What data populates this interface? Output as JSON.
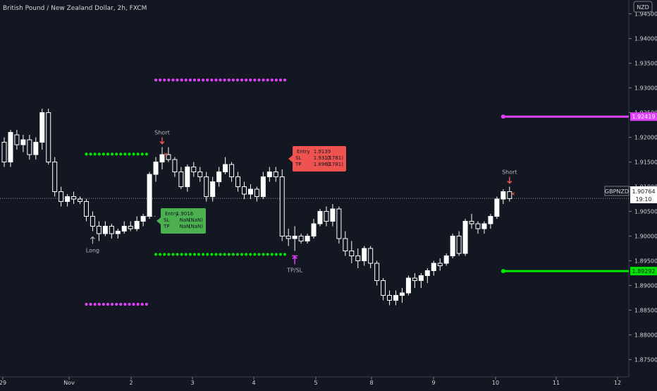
{
  "header": {
    "title": "British Pound / New Zealand Dollar, 2h, FXCM"
  },
  "currency_badge": "NZD",
  "symbol_label": "GBPNZD",
  "countdown": "19:10",
  "colors": {
    "background": "#131722",
    "candle": "#ffffff",
    "axis_text": "#d1d4dc",
    "magenta": "#e040fb",
    "green": "#00e600",
    "short_box": "#ef5350",
    "long_box": "#4caf50",
    "short_arrow": "#ef5350",
    "tp_sl_marker": "#e040fb"
  },
  "chart_data": {
    "type": "candlestick",
    "title": "British Pound / New Zealand Dollar, 2h, FXCM",
    "y_axis": {
      "ticks": [
        "1.94500",
        "1.94000",
        "1.93500",
        "1.93000",
        "1.92500",
        "1.92000",
        "1.91500",
        "1.91000",
        "1.90500",
        "1.90000",
        "1.89500",
        "1.89000",
        "1.88500",
        "1.88000",
        "1.87500"
      ],
      "ylim": [
        1.8715,
        1.9478
      ]
    },
    "x_axis": {
      "ticks": [
        "29",
        "Nov",
        "2",
        "3",
        "4",
        "5",
        "8",
        "9",
        "10",
        "11",
        "12"
      ]
    },
    "last_price": {
      "value": 1.90764,
      "label": "1.90764"
    },
    "level_labels": [
      {
        "value": 1.92419,
        "label": "1.92419",
        "color": "magenta"
      },
      {
        "value": 1.89292,
        "label": "1.89292",
        "color": "green"
      }
    ],
    "dotted_levels": [
      {
        "price": 1.9316,
        "color": "magenta",
        "from_bar": 24,
        "to_bar": 45
      },
      {
        "price": 1.8862,
        "color": "magenta",
        "from_bar": 13,
        "to_bar": 23
      },
      {
        "price": 1.9166,
        "color": "green",
        "from_bar": 13,
        "to_bar": 23
      },
      {
        "price": 1.8963,
        "color": "green",
        "from_bar": 24,
        "to_bar": 45
      }
    ],
    "solid_levels": [
      {
        "price": 1.92419,
        "color": "magenta",
        "from_bar": 79
      },
      {
        "price": 1.89292,
        "color": "green",
        "from_bar": 79
      }
    ],
    "signals": [
      {
        "type": "long",
        "text": "Long",
        "bar": 14
      },
      {
        "type": "short",
        "text": "Short",
        "bar": 25
      },
      {
        "type": "tp_sl",
        "text": "TP/SL",
        "bar": 46
      },
      {
        "type": "short",
        "text": "Short",
        "bar": 80
      }
    ],
    "info_boxes": [
      {
        "kind": "long",
        "rows": [
          {
            "label": "Entry",
            "value": "1.9016",
            "extra": ""
          },
          {
            "label": "SL",
            "value": "NaN",
            "extra": "(NaN)"
          },
          {
            "label": "TP",
            "value": "NaN",
            "extra": "(NaN)"
          }
        ]
      },
      {
        "kind": "short",
        "rows": [
          {
            "label": "Entry",
            "value": "1.9139",
            "extra": ""
          },
          {
            "label": "SL",
            "value": "1.9317",
            "extra": "(1781)"
          },
          {
            "label": "TP",
            "value": "1.8961",
            "extra": "(1781)"
          }
        ]
      }
    ],
    "candles": [
      [
        1.919,
        1.92,
        1.914,
        1.915
      ],
      [
        1.915,
        1.9215,
        1.914,
        1.921
      ],
      [
        1.9205,
        1.9215,
        1.9175,
        1.9185
      ],
      [
        1.9185,
        1.9205,
        1.917,
        1.9195
      ],
      [
        1.9195,
        1.9205,
        1.9155,
        1.9165
      ],
      [
        1.9165,
        1.92,
        1.9155,
        1.919
      ],
      [
        1.919,
        1.9258,
        1.9175,
        1.925
      ],
      [
        1.925,
        1.9258,
        1.9145,
        1.915
      ],
      [
        1.915,
        1.916,
        1.908,
        1.909
      ],
      [
        1.909,
        1.91,
        1.906,
        1.907
      ],
      [
        1.907,
        1.9085,
        1.906,
        1.908
      ],
      [
        1.908,
        1.909,
        1.9065,
        1.9075
      ],
      [
        1.9075,
        1.908,
        1.9065,
        1.907
      ],
      [
        1.907,
        1.9075,
        1.903,
        1.904
      ],
      [
        1.904,
        1.905,
        1.901,
        1.902
      ],
      [
        1.902,
        1.903,
        1.899,
        1.9005
      ],
      [
        1.9005,
        1.903,
        1.9,
        1.902
      ],
      [
        1.902,
        1.9025,
        1.8995,
        1.9005
      ],
      [
        1.9005,
        1.9015,
        1.8995,
        1.901
      ],
      [
        1.901,
        1.903,
        1.9005,
        1.902
      ],
      [
        1.902,
        1.903,
        1.901,
        1.9015
      ],
      [
        1.9015,
        1.904,
        1.901,
        1.903
      ],
      [
        1.903,
        1.9045,
        1.902,
        1.904
      ],
      [
        1.904,
        1.913,
        1.9035,
        1.9125
      ],
      [
        1.9125,
        1.916,
        1.911,
        1.915
      ],
      [
        1.915,
        1.918,
        1.9135,
        1.9165
      ],
      [
        1.9165,
        1.918,
        1.915,
        1.9155
      ],
      [
        1.9155,
        1.916,
        1.912,
        1.913
      ],
      [
        1.913,
        1.914,
        1.9095,
        1.91
      ],
      [
        1.91,
        1.9145,
        1.909,
        1.914
      ],
      [
        1.914,
        1.915,
        1.912,
        1.913
      ],
      [
        1.913,
        1.914,
        1.911,
        1.912
      ],
      [
        1.912,
        1.913,
        1.907,
        1.908
      ],
      [
        1.908,
        1.912,
        1.907,
        1.911
      ],
      [
        1.911,
        1.914,
        1.91,
        1.913
      ],
      [
        1.913,
        1.916,
        1.9125,
        1.9145
      ],
      [
        1.9145,
        1.915,
        1.911,
        1.912
      ],
      [
        1.912,
        1.913,
        1.909,
        1.91
      ],
      [
        1.91,
        1.911,
        1.9075,
        1.9085
      ],
      [
        1.9085,
        1.9105,
        1.9075,
        1.9095
      ],
      [
        1.9095,
        1.91,
        1.907,
        1.908
      ],
      [
        1.908,
        1.913,
        1.9075,
        1.912
      ],
      [
        1.912,
        1.914,
        1.911,
        1.913
      ],
      [
        1.913,
        1.914,
        1.911,
        1.912
      ],
      [
        1.912,
        1.9135,
        1.899,
        1.9
      ],
      [
        1.9,
        1.9015,
        1.898,
        1.8995
      ],
      [
        1.8995,
        1.902,
        1.897,
        1.9
      ],
      [
        1.9,
        1.9005,
        1.8985,
        1.899
      ],
      [
        1.899,
        1.9005,
        1.8985,
        1.9
      ],
      [
        1.9,
        1.9035,
        1.8995,
        1.9025
      ],
      [
        1.9025,
        1.9055,
        1.902,
        1.905
      ],
      [
        1.905,
        1.906,
        1.902,
        1.903
      ],
      [
        1.903,
        1.9065,
        1.902,
        1.9055
      ],
      [
        1.9055,
        1.906,
        1.8985,
        1.8995
      ],
      [
        1.8995,
        1.901,
        1.896,
        1.897
      ],
      [
        1.897,
        1.899,
        1.8945,
        1.896
      ],
      [
        1.896,
        1.8975,
        1.8935,
        1.895
      ],
      [
        1.895,
        1.898,
        1.894,
        1.8975
      ],
      [
        1.8975,
        1.898,
        1.8935,
        1.8945
      ],
      [
        1.8945,
        1.895,
        1.89,
        1.891
      ],
      [
        1.891,
        1.8915,
        1.887,
        1.888
      ],
      [
        1.888,
        1.889,
        1.886,
        1.887
      ],
      [
        1.887,
        1.889,
        1.886,
        1.888
      ],
      [
        1.888,
        1.8895,
        1.8865,
        1.8885
      ],
      [
        1.8885,
        1.892,
        1.888,
        1.8915
      ],
      [
        1.8915,
        1.8925,
        1.8895,
        1.891
      ],
      [
        1.891,
        1.8925,
        1.8895,
        1.892
      ],
      [
        1.892,
        1.8935,
        1.8905,
        1.893
      ],
      [
        1.893,
        1.895,
        1.892,
        1.8945
      ],
      [
        1.8945,
        1.8955,
        1.893,
        1.894
      ],
      [
        1.8945,
        1.8965,
        1.894,
        1.896
      ],
      [
        1.896,
        1.9005,
        1.8955,
        1.9
      ],
      [
        1.9,
        1.901,
        1.896,
        1.8965
      ],
      [
        1.8965,
        1.9035,
        1.896,
        1.903
      ],
      [
        1.903,
        1.9045,
        1.9015,
        1.9025
      ],
      [
        1.9025,
        1.903,
        1.9005,
        1.9015
      ],
      [
        1.9015,
        1.903,
        1.9005,
        1.9025
      ],
      [
        1.9025,
        1.9045,
        1.9015,
        1.904
      ],
      [
        1.904,
        1.908,
        1.9035,
        1.9075
      ],
      [
        1.9075,
        1.9095,
        1.9065,
        1.909
      ],
      [
        1.909,
        1.91,
        1.907,
        1.9076
      ]
    ]
  }
}
